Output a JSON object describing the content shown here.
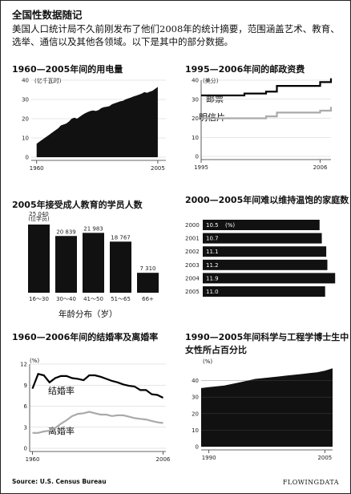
{
  "header": {
    "title": "全国性数据随记",
    "intro": "美国人口统计局不久前刚发布了他们2008年的统计摘要，范围涵盖艺术、教育、选举、通信以及其他各领域。以下是其中的部分数据。"
  },
  "footer": {
    "source": "Source: U.S. Census Bureau",
    "brand": "FLOWINGDATA"
  },
  "chart_data": [
    {
      "id": "electricity",
      "type": "area",
      "title": "1960—2005年间的用电量",
      "unit": "(亿千瓦时)",
      "x": [
        1960,
        1961,
        1962,
        1963,
        1964,
        1965,
        1966,
        1967,
        1968,
        1969,
        1970,
        1971,
        1972,
        1973,
        1974,
        1975,
        1976,
        1977,
        1978,
        1979,
        1980,
        1981,
        1982,
        1983,
        1984,
        1985,
        1986,
        1987,
        1988,
        1989,
        1990,
        1991,
        1992,
        1993,
        1994,
        1995,
        1996,
        1997,
        1998,
        1999,
        2000,
        2001,
        2002,
        2003,
        2004,
        2005
      ],
      "y": [
        7,
        8,
        9,
        10,
        11,
        12,
        13,
        14,
        15,
        16.5,
        17,
        17.5,
        18.5,
        20,
        20.5,
        20,
        21,
        22,
        22.8,
        23.5,
        24,
        24.3,
        24,
        24.5,
        25.5,
        26,
        26.2,
        26.5,
        27.5,
        28,
        28.5,
        29,
        29.3,
        30,
        30.5,
        31,
        31.6,
        32,
        32.5,
        33,
        33.8,
        33.4,
        34,
        34.5,
        35.5,
        36.5
      ],
      "ylim": [
        0,
        40
      ],
      "yticks": [
        0,
        10,
        20,
        30,
        40
      ],
      "xlabels": [
        "1960",
        "2005"
      ],
      "xlim": [
        1958,
        2008
      ]
    },
    {
      "id": "postage",
      "type": "line",
      "title": "1995—2006年间的邮政资费",
      "unit": "(美分)",
      "x": [
        1995,
        1996,
        1997,
        1998,
        1999,
        2000,
        2001,
        2002,
        2003,
        2004,
        2005,
        2006,
        2007
      ],
      "series": [
        {
          "name": "邮票",
          "values": [
            32,
            32,
            32,
            32,
            33,
            33,
            34,
            37,
            37,
            37,
            37,
            39,
            41
          ]
        },
        {
          "name": "明信片",
          "values": [
            20,
            20,
            20,
            20,
            20,
            20,
            21,
            23,
            23,
            23,
            23,
            24,
            26
          ]
        }
      ],
      "ylim": [
        0,
        40
      ],
      "yticks": [
        0,
        10,
        20,
        30,
        40
      ],
      "xlabels": [
        "1995",
        "2006"
      ],
      "xlim": [
        1995,
        2007
      ],
      "colors": [
        "#000000",
        "#aaaaaa"
      ]
    },
    {
      "id": "adult_ed",
      "type": "bar",
      "title": "2005年接受成人教育的学员人数",
      "unit": "(位学员)",
      "categories": [
        "16～30",
        "30～40",
        "41～50",
        "51～65",
        "66+"
      ],
      "values": [
        25040,
        20839,
        21983,
        18767,
        7310
      ],
      "value_labels": [
        "25 040",
        "20 839",
        "21 983",
        "18 767",
        "7 310"
      ],
      "xlabel": "年龄分布（岁）",
      "ylim": [
        0,
        25040
      ]
    },
    {
      "id": "food_insecure",
      "type": "bar",
      "title": "2000—2005年间难以维持温饱的家庭数",
      "categories": [
        "2000",
        "2001",
        "2002",
        "2003",
        "2004",
        "2005"
      ],
      "values": [
        10.5,
        10.7,
        11.1,
        11.2,
        11.9,
        11.0
      ],
      "value_labels": [
        "10.5",
        "10.7",
        "11.1",
        "11.2",
        "11.9",
        "11.0"
      ],
      "unit": "(%)",
      "xlim": [
        0,
        12.1
      ]
    },
    {
      "id": "marriage",
      "type": "line",
      "title": "1960—2006年间的结婚率及离婚率",
      "unit": "(%)",
      "x": [
        1960,
        1962,
        1964,
        1966,
        1968,
        1970,
        1972,
        1974,
        1976,
        1978,
        1980,
        1982,
        1984,
        1986,
        1988,
        1990,
        1992,
        1994,
        1996,
        1998,
        2000,
        2002,
        2004,
        2006
      ],
      "series": [
        {
          "name": "结婚率",
          "values": [
            8.5,
            10.6,
            10.4,
            9.4,
            10.0,
            10.3,
            10.3,
            10.0,
            9.9,
            9.7,
            10.4,
            10.4,
            10.2,
            9.9,
            9.6,
            9.4,
            9.1,
            8.9,
            8.8,
            8.3,
            8.3,
            7.7,
            7.6,
            7.2
          ]
        },
        {
          "name": "离婚率",
          "values": [
            2.2,
            2.2,
            2.4,
            2.5,
            2.9,
            3.5,
            4.0,
            4.6,
            4.9,
            5.0,
            5.2,
            5.0,
            4.8,
            4.8,
            4.6,
            4.7,
            4.7,
            4.5,
            4.3,
            4.2,
            4.1,
            3.9,
            3.7,
            3.6
          ]
        }
      ],
      "ylim": [
        0,
        12
      ],
      "yticks": [
        0,
        3,
        6,
        9,
        12
      ],
      "xlabels": [
        "1960",
        "2006"
      ],
      "xlim": [
        1959,
        2007
      ],
      "colors": [
        "#000000",
        "#aaaaaa"
      ]
    },
    {
      "id": "women_phd",
      "type": "area",
      "title": "1990—2005年间科学与工程学博士生中女性所占百分比",
      "title_lines": [
        "1990—2005年间科学与工程学博士生中",
        "女性所占百分比"
      ],
      "unit": "(%)",
      "x": [
        1989,
        1990,
        1991,
        1992,
        1993,
        1994,
        1995,
        1996,
        1997,
        1998,
        1999,
        2000,
        2001,
        2002,
        2003,
        2004,
        2005,
        2006
      ],
      "y": [
        35.5,
        36,
        36.5,
        37,
        38,
        39,
        40,
        41,
        41.5,
        42,
        42.5,
        43,
        43.5,
        44,
        44.5,
        45,
        46,
        47.5
      ],
      "ylim": [
        0,
        50
      ],
      "yticks": [
        0,
        10,
        20,
        30,
        40
      ],
      "xlabels": [
        "1990",
        "2005"
      ],
      "xlim": [
        1989,
        2006
      ]
    }
  ]
}
